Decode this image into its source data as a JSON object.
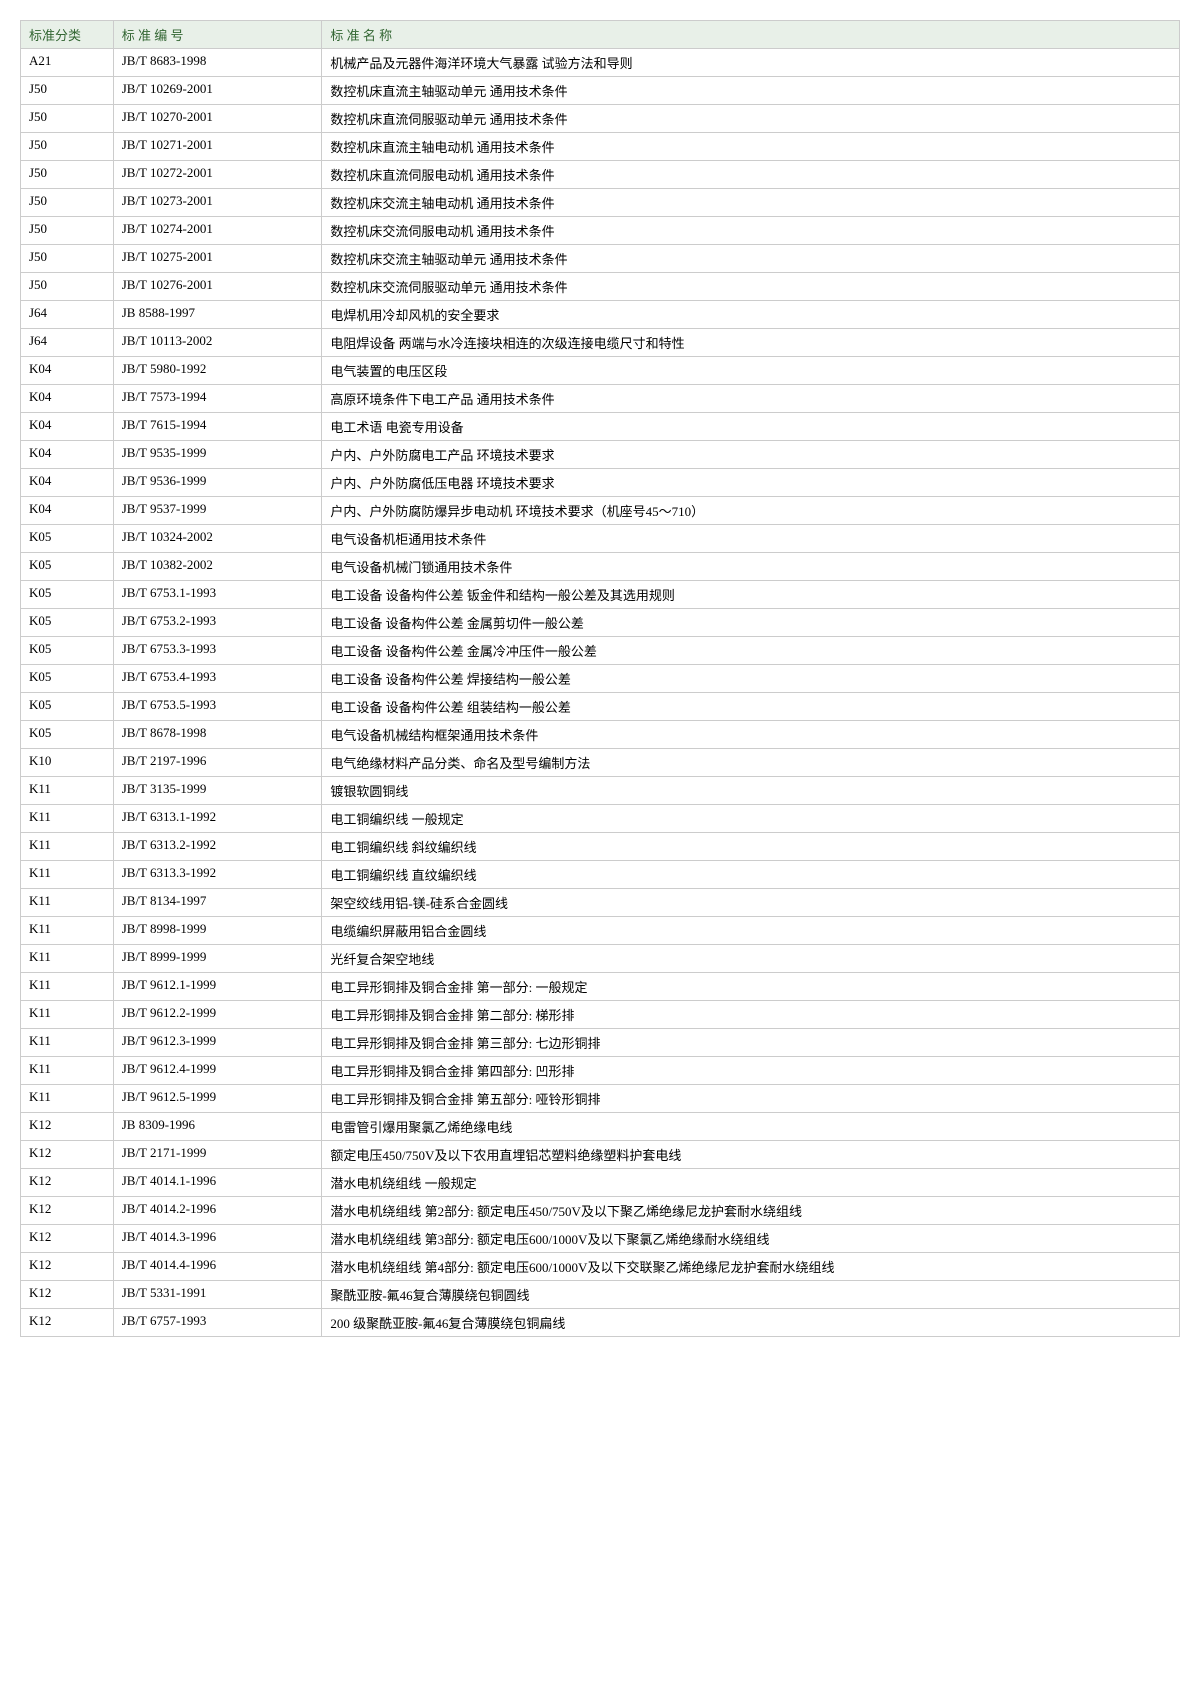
{
  "table": {
    "headers": [
      "标准分类",
      "标 准 编 号",
      "标    准    名    称"
    ],
    "rows": [
      [
        "A21",
        "JB/T 8683-1998",
        "机械产品及元器件海洋环境大气暴露 试验方法和导则"
      ],
      [
        "J50",
        "JB/T 10269-2001",
        "数控机床直流主轴驱动单元 通用技术条件"
      ],
      [
        "J50",
        "JB/T 10270-2001",
        "数控机床直流伺服驱动单元 通用技术条件"
      ],
      [
        "J50",
        "JB/T 10271-2001",
        "数控机床直流主轴电动机 通用技术条件"
      ],
      [
        "J50",
        "JB/T 10272-2001",
        "数控机床直流伺服电动机 通用技术条件"
      ],
      [
        "J50",
        "JB/T 10273-2001",
        "数控机床交流主轴电动机 通用技术条件"
      ],
      [
        "J50",
        "JB/T 10274-2001",
        "数控机床交流伺服电动机 通用技术条件"
      ],
      [
        "J50",
        "JB/T 10275-2001",
        "数控机床交流主轴驱动单元 通用技术条件"
      ],
      [
        "J50",
        "JB/T 10276-2001",
        "数控机床交流伺服驱动单元 通用技术条件"
      ],
      [
        "J64",
        "JB 8588-1997",
        "电焊机用冷却风机的安全要求"
      ],
      [
        "J64",
        "JB/T 10113-2002",
        "电阻焊设备 两端与水冷连接块相连的次级连接电缆尺寸和特性"
      ],
      [
        "K04",
        "JB/T 5980-1992",
        "电气装置的电压区段"
      ],
      [
        "K04",
        "JB/T 7573-1994",
        "高原环境条件下电工产品 通用技术条件"
      ],
      [
        "K04",
        "JB/T 7615-1994",
        "电工术语 电瓷专用设备"
      ],
      [
        "K04",
        "JB/T 9535-1999",
        "户内、户外防腐电工产品 环境技术要求"
      ],
      [
        "K04",
        "JB/T 9536-1999",
        "户内、户外防腐低压电器 环境技术要求"
      ],
      [
        "K04",
        "JB/T 9537-1999",
        "户内、户外防腐防爆异步电动机 环境技术要求（机座号45～710）"
      ],
      [
        "K05",
        "JB/T 10324-2002",
        "电气设备机柜通用技术条件"
      ],
      [
        "K05",
        "JB/T 10382-2002",
        "电气设备机械门锁通用技术条件"
      ],
      [
        "K05",
        "JB/T 6753.1-1993",
        "电工设备 设备构件公差 钣金件和结构一般公差及其选用规则"
      ],
      [
        "K05",
        "JB/T 6753.2-1993",
        "电工设备 设备构件公差 金属剪切件一般公差"
      ],
      [
        "K05",
        "JB/T 6753.3-1993",
        "电工设备 设备构件公差 金属冷冲压件一般公差"
      ],
      [
        "K05",
        "JB/T 6753.4-1993",
        "电工设备 设备构件公差 焊接结构一般公差"
      ],
      [
        "K05",
        "JB/T 6753.5-1993",
        "电工设备 设备构件公差 组装结构一般公差"
      ],
      [
        "K05",
        "JB/T 8678-1998",
        "电气设备机械结构框架通用技术条件"
      ],
      [
        "K10",
        "JB/T 2197-1996",
        "电气绝缘材料产品分类、命名及型号编制方法"
      ],
      [
        "K11",
        "JB/T 3135-1999",
        "镀银软圆铜线"
      ],
      [
        "K11",
        "JB/T 6313.1-1992",
        "电工铜编织线 一般规定"
      ],
      [
        "K11",
        "JB/T 6313.2-1992",
        "电工铜编织线 斜纹编织线"
      ],
      [
        "K11",
        "JB/T 6313.3-1992",
        "电工铜编织线 直纹编织线"
      ],
      [
        "K11",
        "JB/T 8134-1997",
        "架空绞线用铝-镁-硅系合金圆线"
      ],
      [
        "K11",
        "JB/T 8998-1999",
        "电缆编织屏蔽用铝合金圆线"
      ],
      [
        "K11",
        "JB/T 8999-1999",
        "光纤复合架空地线"
      ],
      [
        "K11",
        "JB/T 9612.1-1999",
        "电工异形铜排及铜合金排 第一部分: 一般规定"
      ],
      [
        "K11",
        "JB/T 9612.2-1999",
        "电工异形铜排及铜合金排 第二部分: 梯形排"
      ],
      [
        "K11",
        "JB/T 9612.3-1999",
        "电工异形铜排及铜合金排 第三部分: 七边形铜排"
      ],
      [
        "K11",
        "JB/T 9612.4-1999",
        "电工异形铜排及铜合金排 第四部分: 凹形排"
      ],
      [
        "K11",
        "JB/T 9612.5-1999",
        "电工异形铜排及铜合金排 第五部分: 哑铃形铜排"
      ],
      [
        "K12",
        "JB 8309-1996",
        "电雷管引爆用聚氯乙烯绝缘电线"
      ],
      [
        "K12",
        "JB/T 2171-1999",
        "额定电压450/750V及以下农用直埋铝芯塑料绝缘塑料护套电线"
      ],
      [
        "K12",
        "JB/T 4014.1-1996",
        "潜水电机绕组线 一般规定"
      ],
      [
        "K12",
        "JB/T 4014.2-1996",
        "潜水电机绕组线 第2部分: 额定电压450/750V及以下聚乙烯绝缘尼龙护套耐水绕组线"
      ],
      [
        "K12",
        "JB/T 4014.3-1996",
        "潜水电机绕组线 第3部分: 额定电压600/1000V及以下聚氯乙烯绝缘耐水绕组线"
      ],
      [
        "K12",
        "JB/T 4014.4-1996",
        "潜水电机绕组线 第4部分: 额定电压600/1000V及以下交联聚乙烯绝缘尼龙护套耐水绕组线"
      ],
      [
        "K12",
        "JB/T 5331-1991",
        "聚酰亚胺-氟46复合薄膜绕包铜圆线"
      ],
      [
        "K12",
        "JB/T 6757-1993",
        "200 级聚酰亚胺-氟46复合薄膜绕包铜扁线"
      ]
    ]
  }
}
